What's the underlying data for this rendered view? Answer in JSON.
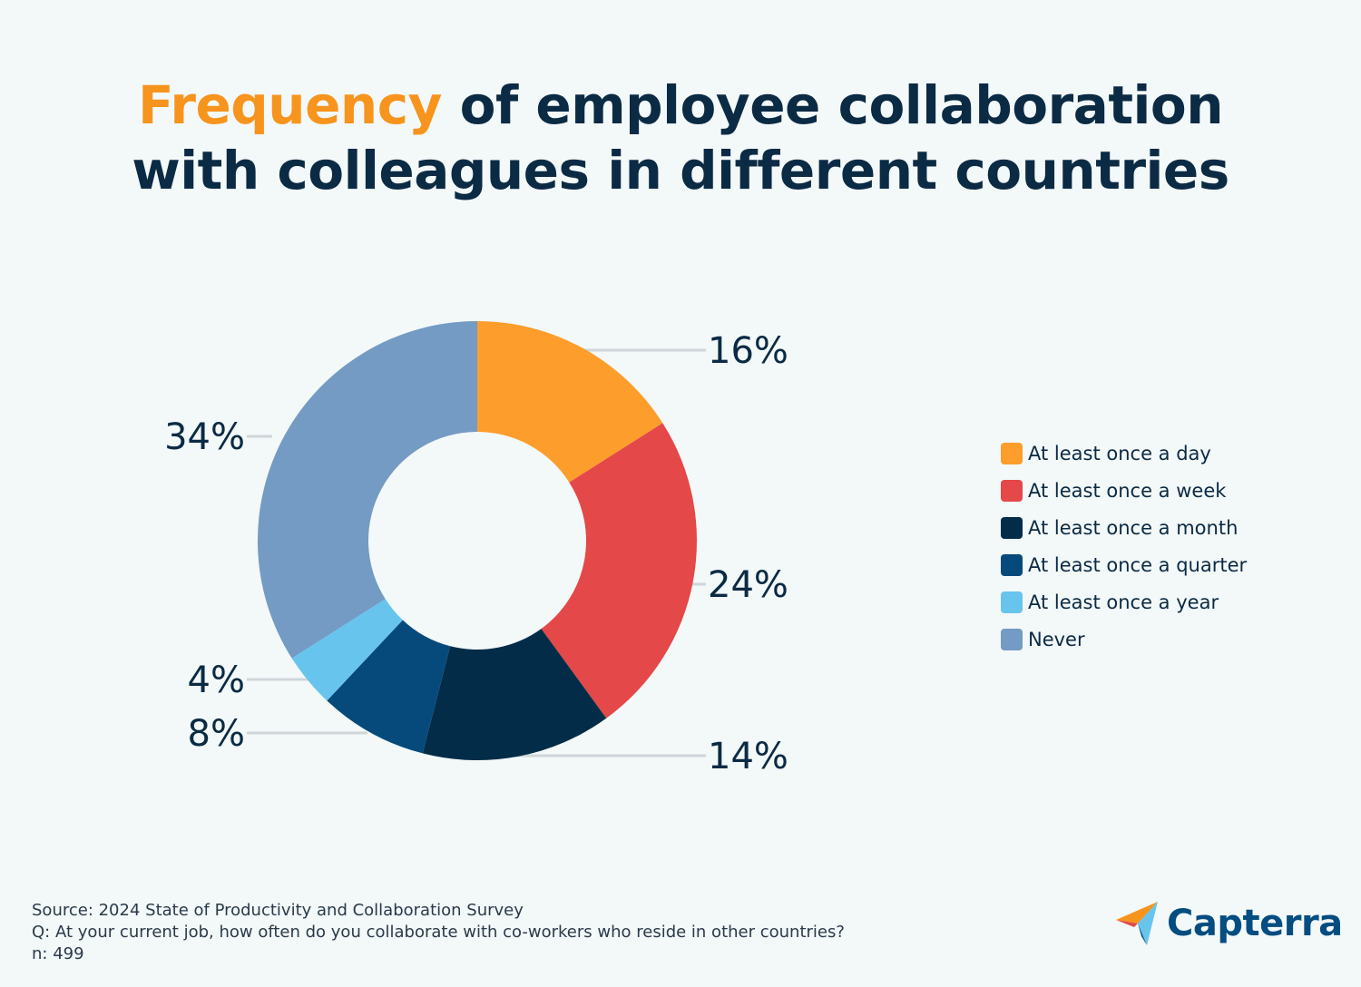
{
  "title": {
    "accent": "Frequency",
    "rest_line1": " of employee collaboration",
    "line2": "with colleagues in different countries"
  },
  "chart_data": {
    "type": "pie",
    "variant": "donut",
    "categories": [
      "At least once a day",
      "At least once a week",
      "At least once a month",
      "At least once a quarter",
      "At least once a year",
      "Never"
    ],
    "values": [
      16,
      24,
      14,
      8,
      4,
      34
    ],
    "data_labels": [
      "16%",
      "24%",
      "14%",
      "8%",
      "4%",
      "34%"
    ],
    "colors": [
      "#fd9d2c",
      "#e44848",
      "#022c48",
      "#064a7c",
      "#67c5ed",
      "#739bc4"
    ],
    "legend_position": "right"
  },
  "footer": {
    "source": "Source: 2024 State of Productivity and Collaboration Survey",
    "question": "Q: At your current job, how often do you collaborate with co-workers who reside in other countries?",
    "n": "n: 499"
  },
  "logo": {
    "text": "Capterra",
    "icon": "capterra-arrow-icon",
    "colors": [
      "#f7941d",
      "#e44848",
      "#67c5ed",
      "#044d80"
    ]
  }
}
